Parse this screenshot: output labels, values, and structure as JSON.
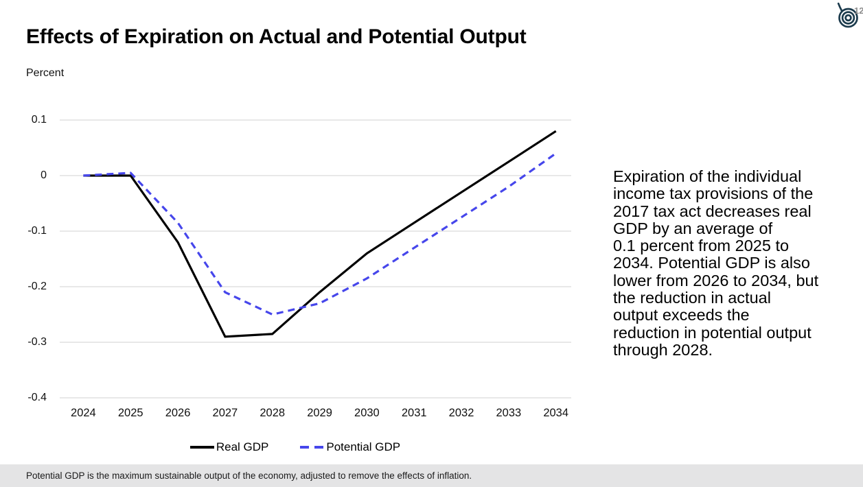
{
  "header": {
    "title": "Effects of Expiration on Actual and Potential Output",
    "logo": "cbo-logo",
    "logo_color": "#1C3B4D"
  },
  "chart_data": {
    "type": "line",
    "title": "Effects of Expiration on Actual and Potential Output",
    "ylabel": "Percent",
    "xlabel": "",
    "categories": [
      "2024",
      "2025",
      "2026",
      "2027",
      "2028",
      "2029",
      "2030",
      "2031",
      "2032",
      "2033",
      "2034"
    ],
    "series": [
      {
        "name": "Real GDP",
        "style": "solid",
        "color": "#000000",
        "values": [
          0,
          0,
          -0.12,
          -0.29,
          -0.285,
          -0.21,
          -0.14,
          -0.085,
          -0.03,
          0.025,
          0.08
        ]
      },
      {
        "name": "Potential GDP",
        "style": "dashed",
        "color": "#4646EB",
        "values": [
          0,
          0.005,
          -0.085,
          -0.21,
          -0.25,
          -0.23,
          -0.185,
          -0.13,
          -0.075,
          -0.02,
          0.04
        ]
      }
    ],
    "ylim": [
      -0.4,
      0.1
    ],
    "y_ticks": [
      {
        "label": "0.1",
        "value": 0.1
      },
      {
        "label": "0",
        "value": 0
      },
      {
        "label": "-0.1",
        "value": -0.1
      },
      {
        "label": "-0.2",
        "value": -0.2
      },
      {
        "label": "-0.3",
        "value": -0.3
      },
      {
        "label": "-0.4",
        "value": -0.4
      }
    ],
    "grid": "horizontal",
    "gridline_color": "#D9D9D9",
    "legend_position": "bottom"
  },
  "annotation": {
    "text": "Expiration of the individual\nincome tax provisions of the\n2017 tax act decreases real\nGDP by an average of\n0.1 percent from 2025 to\n2034. Potential GDP is also\nlower from 2026 to 2034, but\nthe reduction in actual\noutput exceeds the\nreduction in potential output\nthrough 2028."
  },
  "footer": {
    "note": "Potential GDP is the maximum sustainable output of the economy, adjusted to remove the effects of inflation.",
    "page_number": "12"
  }
}
